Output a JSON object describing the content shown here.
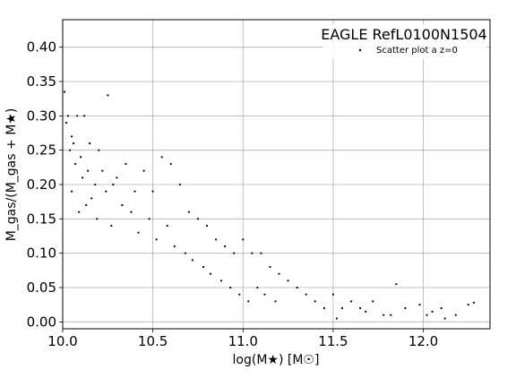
{
  "chart_data": {
    "type": "scatter",
    "title": "EAGLE RefL0100N1504",
    "xlabel": "log(M★) [M☉]",
    "ylabel": "M_gas/(M_gas + M★)",
    "xlim": [
      10.0,
      12.37
    ],
    "ylim": [
      -0.01,
      0.44
    ],
    "xticks": [
      10.0,
      10.5,
      11.0,
      11.5,
      12.0
    ],
    "xtick_labels": [
      "10.0",
      "10.5",
      "11.0",
      "11.5",
      "12.0"
    ],
    "yticks": [
      0.0,
      0.05,
      0.1,
      0.15,
      0.2,
      0.25,
      0.3,
      0.35,
      0.4
    ],
    "ytick_labels": [
      "0.00",
      "0.05",
      "0.10",
      "0.15",
      "0.20",
      "0.25",
      "0.30",
      "0.35",
      "0.40"
    ],
    "grid": true,
    "legend_position": "top-right",
    "series": [
      {
        "name": "Scatter plot a z=0",
        "color": "#000000",
        "x": [
          10.01,
          10.03,
          10.02,
          10.05,
          10.08,
          10.04,
          10.12,
          10.06,
          10.15,
          10.1,
          10.25,
          10.14,
          10.11,
          10.07,
          10.2,
          10.18,
          10.22,
          10.28,
          10.05,
          10.16,
          10.3,
          10.35,
          10.13,
          10.09,
          10.24,
          10.4,
          10.19,
          10.33,
          10.45,
          10.27,
          10.38,
          10.5,
          10.42,
          10.55,
          10.48,
          10.6,
          10.52,
          10.58,
          10.65,
          10.62,
          10.7,
          10.68,
          10.75,
          10.72,
          10.8,
          10.78,
          10.85,
          10.82,
          10.9,
          10.88,
          10.95,
          10.93,
          11.0,
          10.98,
          11.05,
          11.03,
          11.1,
          11.08,
          11.15,
          11.12,
          11.2,
          11.18,
          11.25,
          11.3,
          11.35,
          11.4,
          11.45,
          11.5,
          11.55,
          11.6,
          11.65,
          11.72,
          11.78,
          11.85,
          11.9,
          11.98,
          12.05,
          12.1,
          12.18,
          12.25,
          12.28,
          11.82,
          11.68,
          11.52,
          12.02,
          12.12
        ],
        "y": [
          0.335,
          0.3,
          0.29,
          0.27,
          0.3,
          0.25,
          0.3,
          0.26,
          0.26,
          0.24,
          0.33,
          0.22,
          0.21,
          0.23,
          0.25,
          0.2,
          0.22,
          0.2,
          0.19,
          0.18,
          0.21,
          0.23,
          0.17,
          0.16,
          0.19,
          0.19,
          0.15,
          0.17,
          0.22,
          0.14,
          0.16,
          0.19,
          0.13,
          0.24,
          0.15,
          0.23,
          0.12,
          0.14,
          0.2,
          0.11,
          0.16,
          0.1,
          0.15,
          0.09,
          0.14,
          0.08,
          0.12,
          0.07,
          0.11,
          0.06,
          0.1,
          0.05,
          0.12,
          0.04,
          0.1,
          0.03,
          0.1,
          0.05,
          0.08,
          0.04,
          0.07,
          0.03,
          0.06,
          0.05,
          0.04,
          0.03,
          0.02,
          0.04,
          0.02,
          0.03,
          0.02,
          0.03,
          0.01,
          0.055,
          0.02,
          0.025,
          0.015,
          0.02,
          0.01,
          0.025,
          0.028,
          0.01,
          0.015,
          0.005,
          0.01,
          0.005
        ]
      }
    ]
  }
}
